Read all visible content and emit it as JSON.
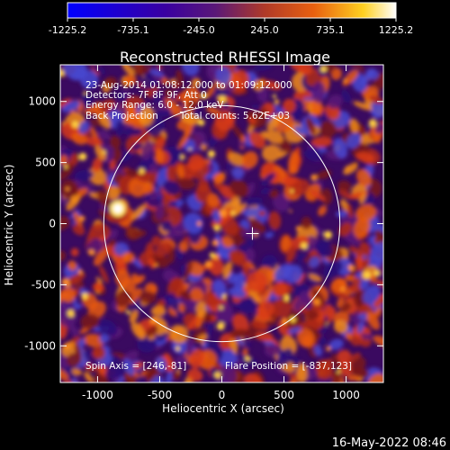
{
  "colorbar": {
    "ticks": [
      "-1225.2",
      "-735.1",
      "-245.0",
      "245.0",
      "735.1",
      "1225.2"
    ],
    "colors": [
      "#0000ff",
      "#3a00a0",
      "#5a1878",
      "#b03a28",
      "#e86010",
      "#ffd020",
      "#ffffff"
    ]
  },
  "chart_data": {
    "type": "heatmap",
    "title": "Reconstructed RHESSI Image",
    "xlabel": "Heliocentric X (arcsec)",
    "ylabel": "Heliocentric Y (arcsec)",
    "xlim": [
      -1300,
      1300
    ],
    "ylim": [
      -1300,
      1300
    ],
    "x_ticks": [
      -1000,
      -500,
      0,
      500,
      1000
    ],
    "y_ticks": [
      -1000,
      -500,
      0,
      500,
      1000
    ],
    "value_range": [
      -1225.2,
      1225.2
    ],
    "solar_limb_radius_arcsec": 950,
    "spin_axis": [
      246,
      -81
    ],
    "flare_position": [
      -837,
      123
    ],
    "annotations": [
      "23-Aug-2014 01:08:12.000 to 01:09:12.000",
      "Detectors: 7F 8F 9F, Att 0",
      "Energy Range: 6.0 - 12.0 keV",
      "Back Projection",
      "Total counts: 5.62E+03"
    ],
    "footer_left": "Spin Axis = [246,-81]",
    "footer_right": "Flare Position = [-837,123]"
  },
  "timestamp": "16-May-2022 08:46"
}
